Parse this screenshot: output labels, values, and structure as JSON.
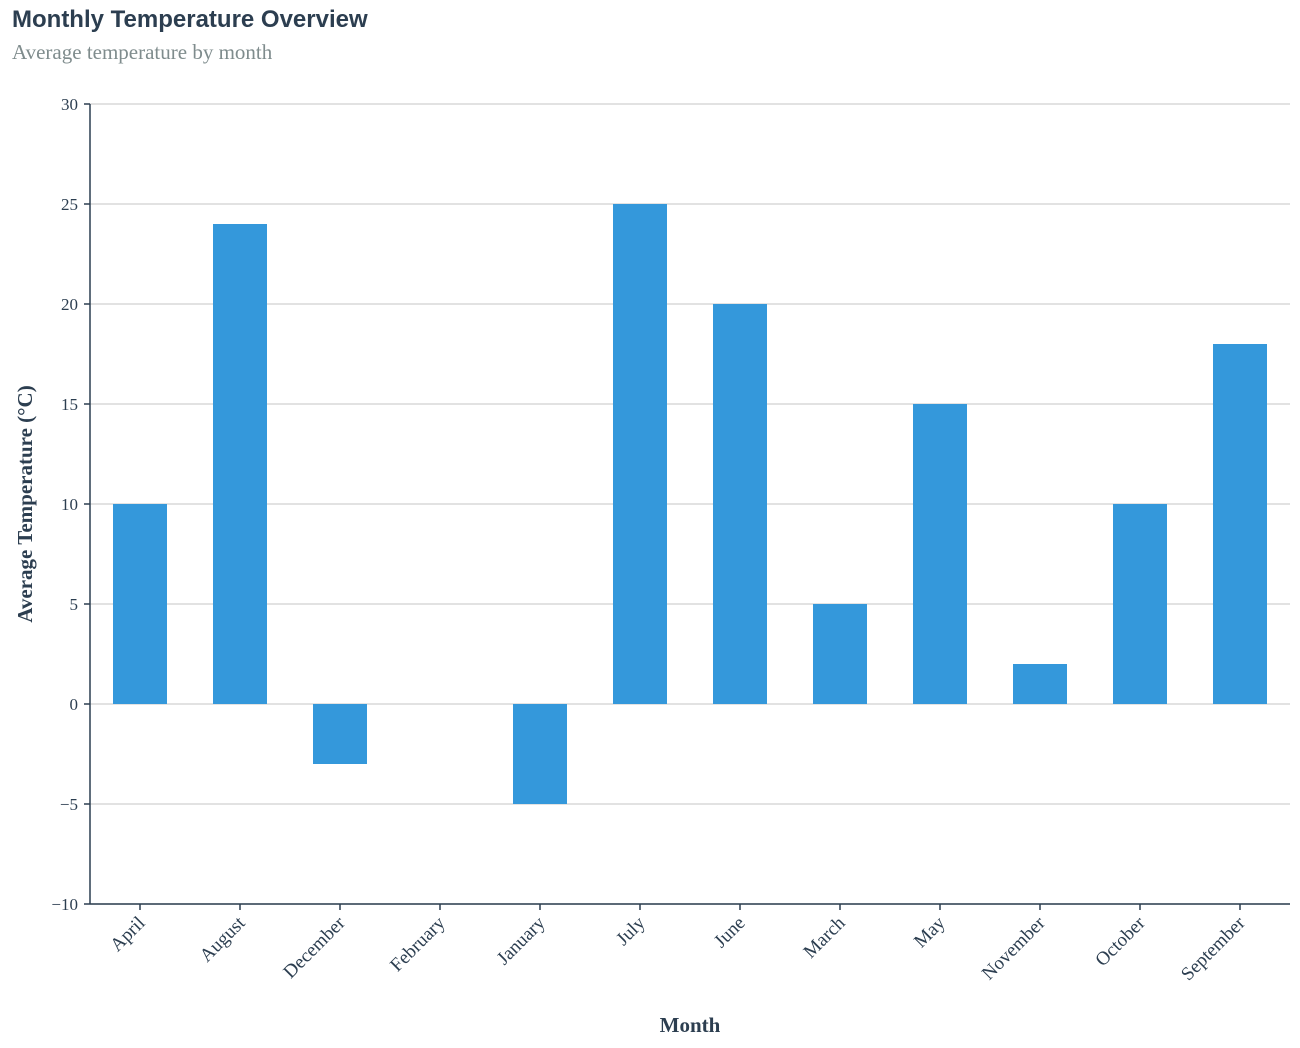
{
  "chart_data": {
    "type": "bar",
    "title": "Monthly Temperature Overview",
    "subtitle": "Average temperature by month",
    "xlabel": "Month",
    "ylabel": "Average Temperature (°C)",
    "categories": [
      "April",
      "August",
      "December",
      "February",
      "January",
      "July",
      "June",
      "March",
      "May",
      "November",
      "October",
      "September"
    ],
    "values": [
      10,
      24,
      -3,
      0,
      -5,
      25,
      20,
      5,
      15,
      2,
      10,
      18
    ],
    "ylim": [
      -10,
      30
    ],
    "yticks": [
      -10,
      -5,
      0,
      5,
      10,
      15,
      20,
      25,
      30
    ],
    "ytick_labels": [
      "−10",
      "−5",
      "0",
      "5",
      "10",
      "15",
      "20",
      "25",
      "30"
    ],
    "grid": true,
    "bar_color": "#3498db",
    "axis_color": "#2c3e50",
    "grid_color": "#d9d9d9",
    "title_color": "#2c3e50",
    "subtitle_color": "#7f8c8d"
  }
}
